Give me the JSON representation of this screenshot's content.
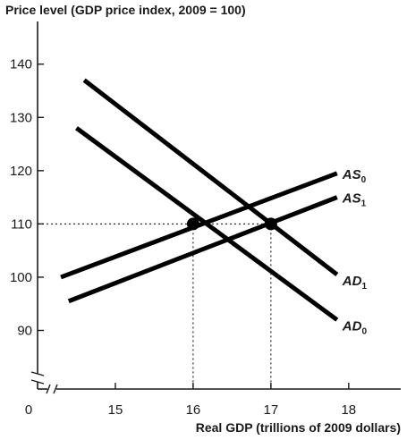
{
  "chart_data": {
    "type": "line",
    "title": "",
    "ylabel": "Price level (GDP price index, 2009 = 100)",
    "xlabel": "Real GDP (trillions of 2009 dollars)",
    "origin_label": "0",
    "x_ticks": [
      15,
      16,
      17,
      18
    ],
    "y_ticks": [
      90,
      100,
      110,
      120,
      130,
      140
    ],
    "xlim": [
      14.0,
      18.6
    ],
    "ylim": [
      79,
      146
    ],
    "axis_breaks": true,
    "grid": false,
    "series": [
      {
        "name": "AS",
        "subscript": "0",
        "x": [
          14.3,
          17.85
        ],
        "y": [
          100.0,
          119.5
        ]
      },
      {
        "name": "AS",
        "subscript": "1",
        "x": [
          14.4,
          17.85
        ],
        "y": [
          95.5,
          115.0
        ]
      },
      {
        "name": "AD",
        "subscript": "0",
        "x": [
          14.5,
          17.85
        ],
        "y": [
          128.0,
          92.0
        ]
      },
      {
        "name": "AD",
        "subscript": "1",
        "x": [
          14.6,
          17.85
        ],
        "y": [
          137.0,
          100.5
        ]
      }
    ],
    "equilibria": [
      {
        "x": 16.0,
        "y": 110
      },
      {
        "x": 17.0,
        "y": 110
      }
    ],
    "guide_lines": {
      "y": 110,
      "x": [
        16.0,
        17.0
      ]
    },
    "colors": {
      "line": "#000000",
      "axis": "#1a1a1a"
    }
  }
}
